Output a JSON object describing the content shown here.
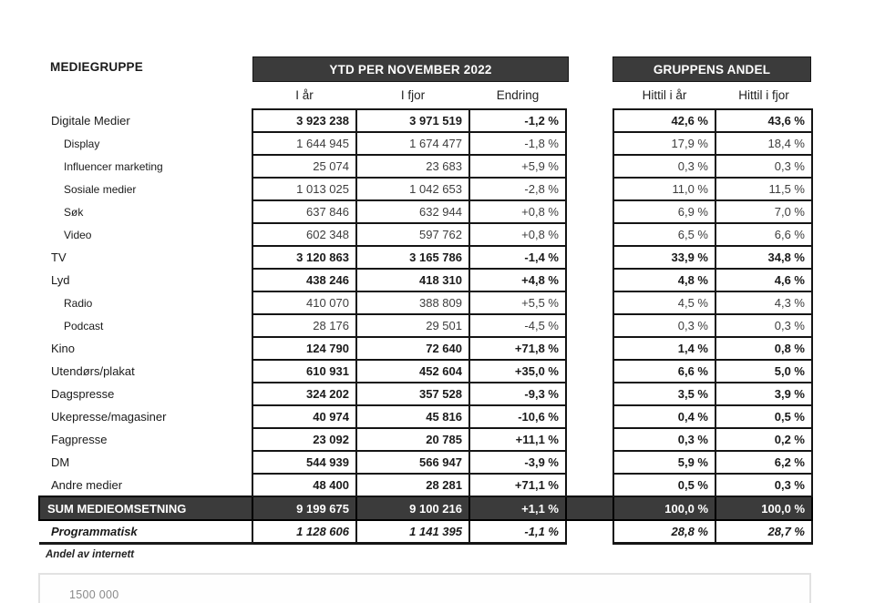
{
  "colors": {
    "band_background": "#3b3b3b",
    "band_text": "#ffffff",
    "cell_border": "#141414",
    "sum_row_background": "#3b3b3b",
    "regular_value_text": "#3d3d3d",
    "bold_value_text": "#1a1a1a",
    "bottom_box_border": "#e2e2e2",
    "axis_label_text": "#8a8a8a"
  },
  "header": {
    "row_label_header": "MEDIEGRUPPE",
    "group1_title": "YTD PER NOVEMBER 2022",
    "group2_title": "GRUPPENS ANDEL",
    "columns": [
      "I år",
      "I fjor",
      "Endring",
      "Hittil i år",
      "Hittil i fjor"
    ]
  },
  "table": {
    "rows": [
      {
        "label": "Digitale Medier",
        "style": "group",
        "i_ar": "3 923 238",
        "i_fjor": "3 971 519",
        "endring": "-1,2 %",
        "hittil_i_ar": "42,6 %",
        "hittil_i_fjor": "43,6 %"
      },
      {
        "label": "Display",
        "style": "sub",
        "i_ar": "1 644 945",
        "i_fjor": "1 674 477",
        "endring": "-1,8 %",
        "hittil_i_ar": "17,9 %",
        "hittil_i_fjor": "18,4 %"
      },
      {
        "label": "Influencer marketing",
        "style": "sub",
        "i_ar": "25 074",
        "i_fjor": "23 683",
        "endring": "+5,9 %",
        "hittil_i_ar": "0,3 %",
        "hittil_i_fjor": "0,3 %"
      },
      {
        "label": "Sosiale medier",
        "style": "sub",
        "i_ar": "1 013 025",
        "i_fjor": "1 042 653",
        "endring": "-2,8 %",
        "hittil_i_ar": "11,0 %",
        "hittil_i_fjor": "11,5 %"
      },
      {
        "label": "Søk",
        "style": "sub",
        "i_ar": "637 846",
        "i_fjor": "632 944",
        "endring": "+0,8 %",
        "hittil_i_ar": "6,9 %",
        "hittil_i_fjor": "7,0 %"
      },
      {
        "label": "Video",
        "style": "sub",
        "i_ar": "602 348",
        "i_fjor": "597 762",
        "endring": "+0,8 %",
        "hittil_i_ar": "6,5 %",
        "hittil_i_fjor": "6,6 %"
      },
      {
        "label": "TV",
        "style": "group",
        "i_ar": "3 120 863",
        "i_fjor": "3 165 786",
        "endring": "-1,4 %",
        "hittil_i_ar": "33,9 %",
        "hittil_i_fjor": "34,8 %"
      },
      {
        "label": "Lyd",
        "style": "group",
        "i_ar": "438 246",
        "i_fjor": "418 310",
        "endring": "+4,8 %",
        "hittil_i_ar": "4,8 %",
        "hittil_i_fjor": "4,6 %"
      },
      {
        "label": "Radio",
        "style": "sub",
        "i_ar": "410 070",
        "i_fjor": "388 809",
        "endring": "+5,5 %",
        "hittil_i_ar": "4,5 %",
        "hittil_i_fjor": "4,3 %"
      },
      {
        "label": "Podcast",
        "style": "sub",
        "i_ar": "28 176",
        "i_fjor": "29 501",
        "endring": "-4,5 %",
        "hittil_i_ar": "0,3 %",
        "hittil_i_fjor": "0,3 %"
      },
      {
        "label": "Kino",
        "style": "group",
        "i_ar": "124 790",
        "i_fjor": "72 640",
        "endring": "+71,8 %",
        "hittil_i_ar": "1,4 %",
        "hittil_i_fjor": "0,8 %"
      },
      {
        "label": "Utendørs/plakat",
        "style": "group",
        "i_ar": "610 931",
        "i_fjor": "452 604",
        "endring": "+35,0 %",
        "hittil_i_ar": "6,6 %",
        "hittil_i_fjor": "5,0 %"
      },
      {
        "label": "Dagspresse",
        "style": "group",
        "i_ar": "324 202",
        "i_fjor": "357 528",
        "endring": "-9,3 %",
        "hittil_i_ar": "3,5 %",
        "hittil_i_fjor": "3,9 %"
      },
      {
        "label": "Ukepresse/magasiner",
        "style": "group",
        "i_ar": "40 974",
        "i_fjor": "45 816",
        "endring": "-10,6 %",
        "hittil_i_ar": "0,4 %",
        "hittil_i_fjor": "0,5 %"
      },
      {
        "label": "Fagpresse",
        "style": "group",
        "i_ar": "23 092",
        "i_fjor": "20 785",
        "endring": "+11,1 %",
        "hittil_i_ar": "0,3 %",
        "hittil_i_fjor": "0,2 %"
      },
      {
        "label": "DM",
        "style": "group",
        "i_ar": "544 939",
        "i_fjor": "566 947",
        "endring": "-3,9 %",
        "hittil_i_ar": "5,9 %",
        "hittil_i_fjor": "6,2 %"
      },
      {
        "label": "Andre medier",
        "style": "group",
        "i_ar": "48 400",
        "i_fjor": "28 281",
        "endring": "+71,1 %",
        "hittil_i_ar": "0,5 %",
        "hittil_i_fjor": "0,3 %"
      },
      {
        "label": "SUM MEDIEOMSETNING",
        "style": "sum",
        "i_ar": "9 199 675",
        "i_fjor": "9 100 216",
        "endring": "+1,1 %",
        "hittil_i_ar": "100,0 %",
        "hittil_i_fjor": "100,0 %"
      },
      {
        "label": "Programmatisk",
        "style": "programmatic",
        "i_ar": "1 128 606",
        "i_fjor": "1 141 395",
        "endring": "-1,1 %",
        "hittil_i_ar": "28,8 %",
        "hittil_i_fjor": "28,7 %"
      }
    ]
  },
  "footnote": "Andel av internett",
  "bottom_chart": {
    "partial_axis_label": "1500 000"
  }
}
